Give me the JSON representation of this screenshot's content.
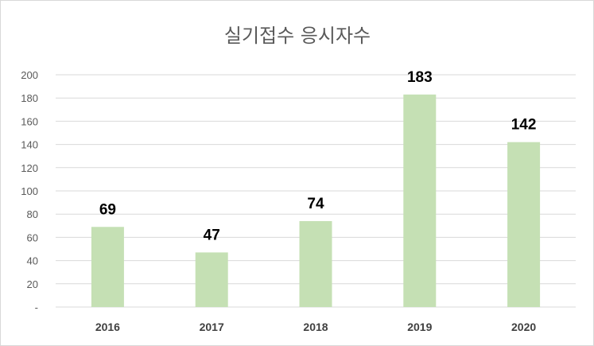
{
  "chart_data": {
    "type": "bar",
    "title": "실기접수 응시자수",
    "categories": [
      "2016",
      "2017",
      "2018",
      "2019",
      "2020"
    ],
    "values": [
      69,
      47,
      74,
      183,
      142
    ],
    "ylim": [
      0,
      200
    ],
    "y_ticks": [
      "-",
      "20",
      "40",
      "60",
      "80",
      "100",
      "120",
      "140",
      "160",
      "180",
      "200"
    ],
    "grid": true,
    "legend": "none",
    "data_labels": true,
    "colors": {
      "bar": "#c5e0b4",
      "grid": "#d9d9d9",
      "text": "#595959"
    }
  }
}
